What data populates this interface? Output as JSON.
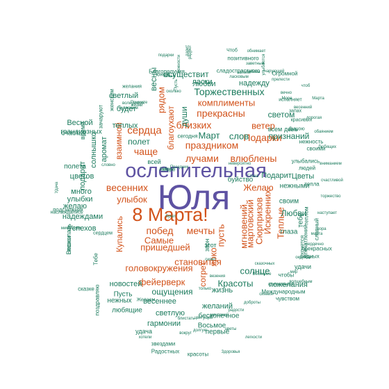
{
  "colors": {
    "green": "#1a7a5c",
    "orange": "#d2521a",
    "purple": "#5e52a2"
  },
  "words": [
    {
      "text": "Юля",
      "color": "purple"
    },
    {
      "text": "ослепительная",
      "color": "purple"
    },
    {
      "text": "8 Марта!",
      "color": "orange"
    },
    {
      "text": "Торжественных",
      "color": "green"
    },
    {
      "text": "комплименты",
      "color": "orange"
    },
    {
      "text": "прекрасны",
      "color": "orange"
    },
    {
      "text": "близких",
      "color": "orange"
    },
    {
      "text": "праздником",
      "color": "orange"
    },
    {
      "text": "влюблены",
      "color": "orange"
    },
    {
      "text": "лучами",
      "color": "orange"
    },
    {
      "text": "сердца",
      "color": "orange"
    },
    {
      "text": "чаще",
      "color": "orange"
    },
    {
      "text": "полет",
      "color": "green"
    },
    {
      "text": "весенних",
      "color": "orange"
    },
    {
      "text": "улыбок",
      "color": "orange"
    },
    {
      "text": "побед",
      "color": "orange"
    },
    {
      "text": "мечты",
      "color": "orange"
    },
    {
      "text": "пришедшей",
      "color": "orange"
    },
    {
      "text": "Самые",
      "color": "orange"
    },
    {
      "text": "становится",
      "color": "orange"
    },
    {
      "text": "головокружения",
      "color": "orange"
    },
    {
      "text": "фейерверк",
      "color": "orange"
    },
    {
      "text": "Красоты",
      "color": "green"
    },
    {
      "text": "Сюрпризов",
      "color": "orange"
    },
    {
      "text": "Искренних",
      "color": "orange"
    },
    {
      "text": "Теплые",
      "color": "orange"
    },
    {
      "text": "Любви",
      "color": "green"
    },
    {
      "text": "Желаю",
      "color": "orange"
    },
    {
      "text": "мгновений",
      "color": "orange"
    },
    {
      "text": "мартовский",
      "color": "orange"
    },
    {
      "text": "ярко",
      "color": "orange"
    },
    {
      "text": "пусть",
      "color": "orange"
    },
    {
      "text": "согрет",
      "color": "orange"
    },
    {
      "text": "Купались",
      "color": "orange"
    },
    {
      "text": "взаимной",
      "color": "orange"
    },
    {
      "text": "благоухают",
      "color": "orange"
    },
    {
      "text": "души",
      "color": "green"
    },
    {
      "text": "рядом",
      "color": "orange"
    },
    {
      "text": "весны",
      "color": "green"
    },
    {
      "text": "Подарки",
      "color": "orange"
    },
    {
      "text": "ветер",
      "color": "orange"
    },
    {
      "text": "Март",
      "color": "green"
    },
    {
      "text": "слов",
      "color": "green"
    },
    {
      "text": "светом",
      "color": "green"
    },
    {
      "text": "признаний",
      "color": "green"
    },
    {
      "text": "осуществит",
      "color": "green"
    },
    {
      "text": "ласки",
      "color": "green"
    },
    {
      "text": "любви",
      "color": "green"
    },
    {
      "text": "надежду",
      "color": "green"
    },
    {
      "text": "солнце",
      "color": "green"
    },
    {
      "text": "ощущения",
      "color": "green"
    },
    {
      "text": "весеннее",
      "color": "green"
    },
    {
      "text": "светлую",
      "color": "green"
    },
    {
      "text": "гармонии",
      "color": "green"
    },
    {
      "text": "жизнь",
      "color": "green"
    },
    {
      "text": "желаний",
      "color": "green"
    },
    {
      "text": "бесконечное",
      "color": "green"
    },
    {
      "text": "Восьмое",
      "color": "green"
    },
    {
      "text": "первые",
      "color": "green"
    },
    {
      "text": "пожелания",
      "color": "green"
    },
    {
      "text": "новостей",
      "color": "green"
    },
    {
      "text": "Пусть",
      "color": "green"
    },
    {
      "text": "нежных",
      "color": "green"
    },
    {
      "text": "любящие",
      "color": "green"
    },
    {
      "text": "удача",
      "color": "green"
    },
    {
      "text": "Успехов",
      "color": "green"
    },
    {
      "text": "надеждами",
      "color": "green"
    },
    {
      "text": "желаю",
      "color": "green"
    },
    {
      "text": "улыбки",
      "color": "green"
    },
    {
      "text": "много",
      "color": "green"
    },
    {
      "text": "цветов",
      "color": "green"
    },
    {
      "text": "полета",
      "color": "green"
    },
    {
      "text": "подарит",
      "color": "green"
    },
    {
      "text": "солнышко",
      "color": "green"
    },
    {
      "text": "аромат",
      "color": "green"
    },
    {
      "text": "Весной",
      "color": "green"
    },
    {
      "text": "теплых",
      "color": "green"
    },
    {
      "text": "будет",
      "color": "green"
    },
    {
      "text": "светлый",
      "color": "green"
    },
    {
      "text": "Подарит",
      "color": "green"
    },
    {
      "text": "Цветы",
      "color": "green"
    },
    {
      "text": "нежными",
      "color": "green"
    },
    {
      "text": "своим",
      "color": "green"
    },
    {
      "text": "глаза",
      "color": "green"
    },
    {
      "text": "тебе",
      "color": "green"
    },
    {
      "text": "буйство",
      "color": "green"
    },
    {
      "text": "этот",
      "color": "green"
    },
    {
      "text": "звон",
      "color": "green"
    },
    {
      "text": "день",
      "color": "green"
    },
    {
      "text": "всем",
      "color": "green"
    },
    {
      "text": "всей",
      "color": "green"
    },
    {
      "text": "сегодня",
      "color": "green"
    },
    {
      "text": "удачи",
      "color": "green"
    },
    {
      "text": "Международным",
      "color": "green"
    },
    {
      "text": "чтобы",
      "color": "green"
    },
    {
      "text": "чувством",
      "color": "green"
    },
    {
      "text": "родных",
      "color": "green"
    },
    {
      "text": "прекрасных",
      "color": "green"
    },
    {
      "text": "хочется",
      "color": "green"
    },
    {
      "text": "славный",
      "color": "green"
    },
    {
      "text": "впечатлений",
      "color": "green"
    },
    {
      "text": "теплом",
      "color": "green"
    },
    {
      "text": "людей",
      "color": "green"
    },
    {
      "text": "улыбались",
      "color": "green"
    },
    {
      "text": "тепла",
      "color": "green"
    },
    {
      "text": "своими",
      "color": "green"
    },
    {
      "text": "нежность",
      "color": "green"
    },
    {
      "text": "Душою",
      "color": "green"
    },
    {
      "text": "красивых",
      "color": "green"
    },
    {
      "text": "запах",
      "color": "green"
    },
    {
      "text": "исполняет",
      "color": "green"
    },
    {
      "text": "Огромной",
      "color": "green"
    },
    {
      "text": "позитивного",
      "color": "green"
    },
    {
      "text": "сладострастного",
      "color": "green"
    },
    {
      "text": "Благополучия",
      "color": "green"
    },
    {
      "text": "юной",
      "color": "green"
    },
    {
      "text": "желания",
      "color": "green"
    },
    {
      "text": "женским",
      "color": "green"
    },
    {
      "text": "зачаруют",
      "color": "green"
    },
    {
      "text": "грандиозных",
      "color": "green"
    },
    {
      "text": "счастья",
      "color": "green"
    },
    {
      "text": "время",
      "color": "green"
    },
    {
      "text": "Весны",
      "color": "green"
    },
    {
      "text": "пожелать",
      "color": "green"
    },
    {
      "text": "подснежник",
      "color": "green"
    },
    {
      "text": "наслаждались",
      "color": "green"
    },
    {
      "text": "Удача",
      "color": "green"
    },
    {
      "text": "Чтоб",
      "color": "green"
    },
    {
      "text": "подарки",
      "color": "green"
    },
    {
      "text": "Здоровья",
      "color": "green"
    },
    {
      "text": "красоты",
      "color": "green"
    },
    {
      "text": "Радостных",
      "color": "green"
    },
    {
      "text": "звездами",
      "color": "green"
    },
    {
      "text": "легкости",
      "color": "green"
    },
    {
      "text": "хотели",
      "color": "green"
    },
    {
      "text": "Желаем",
      "color": "green"
    },
    {
      "text": "поздравляю",
      "color": "green"
    },
    {
      "text": "Тебе",
      "color": "green"
    },
    {
      "text": "сказке",
      "color": "green"
    },
    {
      "text": "сердцем",
      "color": "green"
    },
    {
      "text": "мимозами",
      "color": "green"
    },
    {
      "text": "букет",
      "color": "green"
    },
    {
      "text": "море",
      "color": "green"
    },
    {
      "text": "Праздник",
      "color": "green"
    },
    {
      "text": "невероятно",
      "color": "green"
    },
    {
      "text": "Глаза",
      "color": "green"
    },
    {
      "text": "волшебным",
      "color": "green"
    },
    {
      "text": "марта",
      "color": "green"
    },
    {
      "text": "сказочных",
      "color": "green"
    },
    {
      "text": "Весеннее",
      "color": "green"
    },
    {
      "text": "везения",
      "color": "green"
    },
    {
      "text": "только",
      "color": "green"
    },
    {
      "text": "сияет",
      "color": "green"
    },
    {
      "text": "цветы",
      "color": "green"
    },
    {
      "text": "вокруг",
      "color": "green"
    },
    {
      "text": "долгую",
      "color": "green"
    },
    {
      "text": "Добра",
      "color": "green"
    },
    {
      "text": "Море",
      "color": "green"
    },
    {
      "text": "чтоб",
      "color": "green"
    },
    {
      "text": "Марта",
      "color": "green"
    },
    {
      "text": "заветные",
      "color": "green"
    },
    {
      "text": "любовь",
      "color": "green"
    },
    {
      "text": "словно",
      "color": "green"
    },
    {
      "text": "чудесным",
      "color": "green"
    },
    {
      "text": "жизни",
      "color": "green"
    },
    {
      "text": "самых",
      "color": "green"
    },
    {
      "text": "волнующих",
      "color": "green"
    },
    {
      "text": "Примите",
      "color": "green"
    },
    {
      "text": "сколько",
      "color": "green"
    },
    {
      "text": "нежности",
      "color": "green"
    },
    {
      "text": "радуют",
      "color": "green"
    },
    {
      "text": "Пусть",
      "color": "green"
    },
    {
      "text": "дарит",
      "color": "green"
    },
    {
      "text": "ласковым",
      "color": "green"
    },
    {
      "text": "обнимает",
      "color": "green"
    },
    {
      "text": "улыбаются",
      "color": "green"
    },
    {
      "text": "капели",
      "color": "green"
    },
    {
      "text": "чарующей",
      "color": "green"
    },
    {
      "text": "прелести",
      "color": "green"
    },
    {
      "text": "вечно",
      "color": "green"
    },
    {
      "text": "весенний",
      "color": "green"
    },
    {
      "text": "дорогая",
      "color": "green"
    },
    {
      "text": "обаянием",
      "color": "green"
    },
    {
      "text": "Любящих",
      "color": "green"
    },
    {
      "text": "вниманием",
      "color": "green"
    },
    {
      "text": "счастливой",
      "color": "green"
    },
    {
      "text": "торжество",
      "color": "green"
    },
    {
      "text": "наступает",
      "color": "green"
    },
    {
      "text": "пора",
      "color": "green"
    },
    {
      "text": "сердечно",
      "color": "green"
    },
    {
      "text": "окружает",
      "color": "green"
    },
    {
      "text": "мир",
      "color": "green"
    },
    {
      "text": "вдохновения",
      "color": "green"
    },
    {
      "text": "сияния",
      "color": "green"
    },
    {
      "text": "доброты",
      "color": "green"
    },
    {
      "text": "радости",
      "color": "green"
    },
    {
      "text": "мечтаний",
      "color": "green"
    },
    {
      "text": "цветущей",
      "color": "green"
    },
    {
      "text": "блистать",
      "color": "green"
    },
    {
      "text": "восторга",
      "color": "green"
    },
    {
      "text": "искренне",
      "color": "green"
    },
    {
      "text": "пламенных",
      "color": "green"
    },
    {
      "text": "сбудутся",
      "color": "green"
    },
    {
      "text": "чудес",
      "color": "green"
    }
  ]
}
